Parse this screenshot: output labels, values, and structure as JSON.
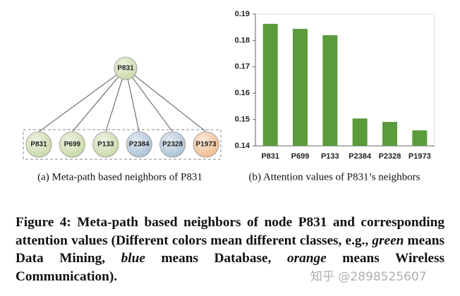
{
  "diagram": {
    "root": "P831",
    "neighbors": [
      {
        "label": "P831",
        "color": "#c8d8a4"
      },
      {
        "label": "P699",
        "color": "#c8d8a4"
      },
      {
        "label": "P133",
        "color": "#c8d8a4"
      },
      {
        "label": "P2384",
        "color": "#a9bfd6"
      },
      {
        "label": "P2328",
        "color": "#a9bfd6"
      },
      {
        "label": "P1973",
        "color": "#f0bb8c"
      }
    ],
    "root_color": "#c8d8a4",
    "caption": "(a) Meta-path based neighbors of P831"
  },
  "chart_data": {
    "type": "bar",
    "categories": [
      "P831",
      "P699",
      "P133",
      "P2384",
      "P2328",
      "P1973"
    ],
    "values": [
      0.1863,
      0.1844,
      0.182,
      0.1504,
      0.1491,
      0.1459
    ],
    "color": "#5b9b3c",
    "ylim": [
      0.14,
      0.19
    ],
    "yticks": [
      0.14,
      0.15,
      0.16,
      0.17,
      0.18,
      0.19
    ],
    "caption": "(b) Attention values of P831’s neighbors"
  },
  "caption": [
    "Figure 4: Meta-path based neighbors of node P831 and corresponding attention values (Different colors mean different classes, e.g., ",
    "green",
    " means Data Mining, ",
    "blue",
    " means Database, ",
    "orange",
    " means Wireless Communication)."
  ],
  "watermark": "知乎 @2898525607"
}
